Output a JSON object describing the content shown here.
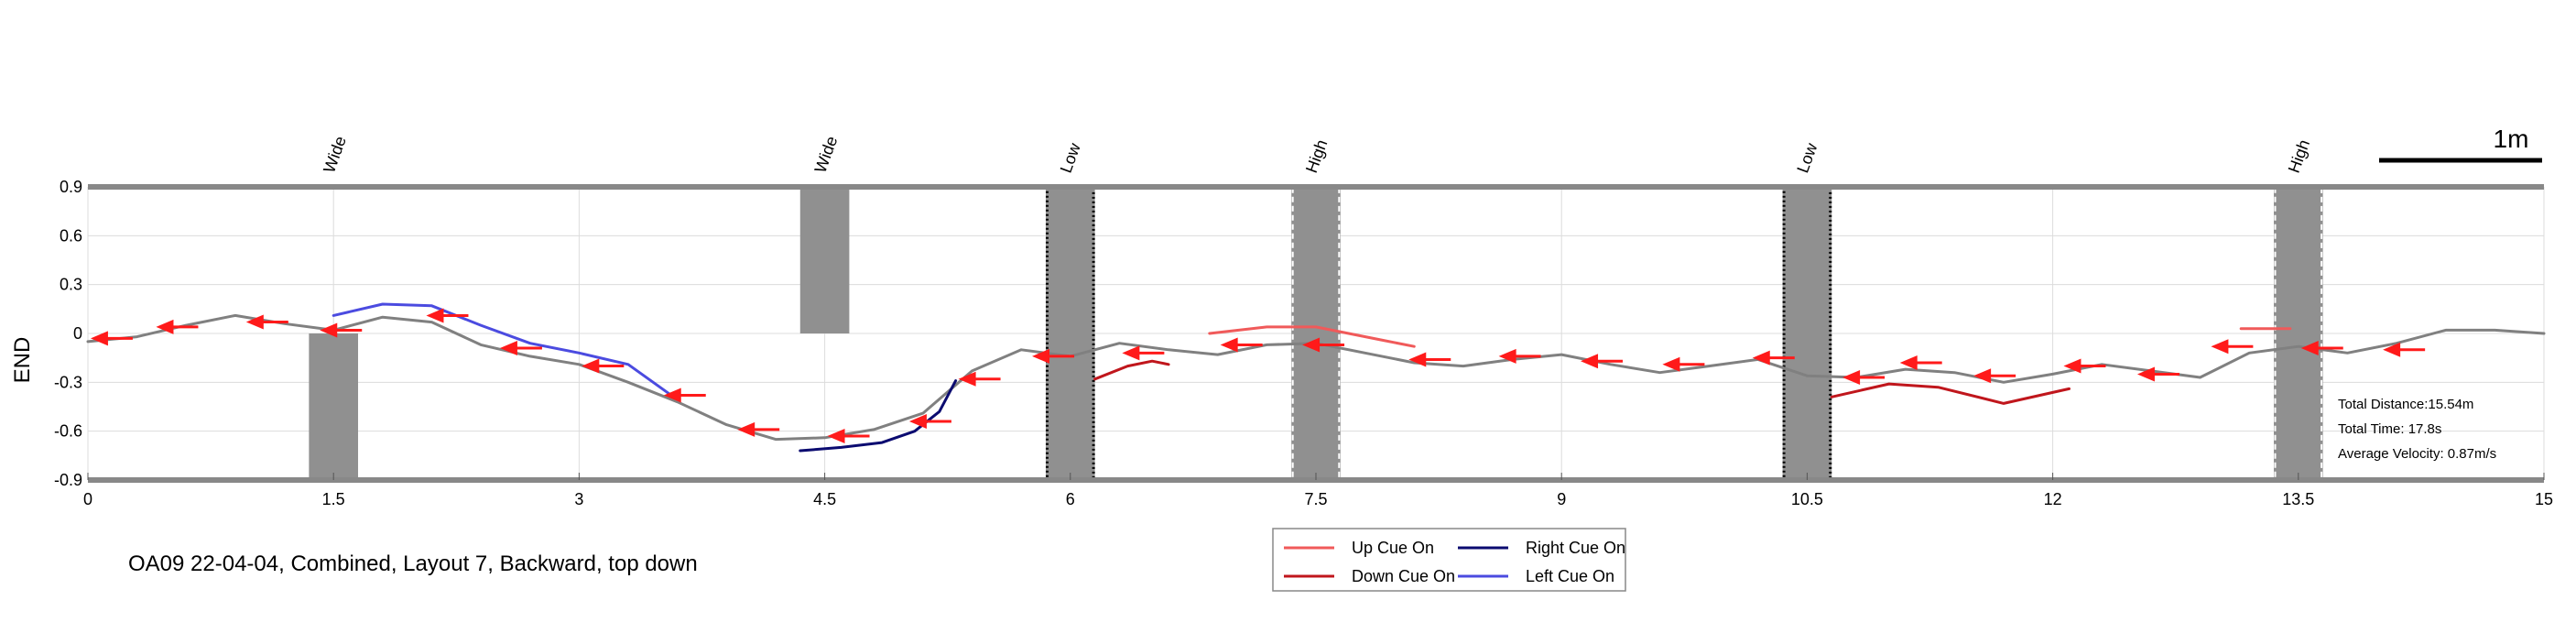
{
  "chart_data": {
    "type": "line",
    "caption": "OA09 22-04-04, Combined, Layout 7, Backward, top down",
    "ylabel": "END",
    "xlim": [
      0,
      15
    ],
    "ylim": [
      -0.9,
      0.9
    ],
    "xticks": [
      0,
      1.5,
      3,
      4.5,
      6,
      7.5,
      9,
      10.5,
      12,
      13.5,
      15
    ],
    "xtick_labels": [
      "0",
      "1.5",
      "3",
      "4.5",
      "6",
      "7.5",
      "9",
      "10.5",
      "12",
      "13.5",
      "15"
    ],
    "yticks": [
      0.9,
      0.6,
      0.3,
      0,
      -0.3,
      -0.6,
      -0.9
    ],
    "ytick_labels": [
      "0.9",
      "0.6",
      "0.3",
      "0",
      "-0.3",
      "-0.6",
      "-0.9"
    ],
    "grid": true,
    "scale_bar_label": "1m",
    "obstacles": [
      {
        "label": "Wide",
        "x0": 1.35,
        "x1": 1.65,
        "y0": -0.9,
        "y1": 0.0,
        "style": "solid"
      },
      {
        "label": "Wide",
        "x0": 4.35,
        "x1": 4.65,
        "y0": 0.0,
        "y1": 0.9,
        "style": "solid"
      },
      {
        "label": "Low",
        "x0": 5.85,
        "x1": 6.15,
        "y0": -0.9,
        "y1": 0.9,
        "style": "dotted-black"
      },
      {
        "label": "High",
        "x0": 7.35,
        "x1": 7.65,
        "y0": -0.9,
        "y1": 0.9,
        "style": "dashed-white"
      },
      {
        "label": "Low",
        "x0": 10.35,
        "x1": 10.65,
        "y0": -0.9,
        "y1": 0.9,
        "style": "dotted-black"
      },
      {
        "label": "High",
        "x0": 13.35,
        "x1": 13.65,
        "y0": -0.9,
        "y1": 0.9,
        "style": "dashed-white"
      }
    ],
    "series": [
      {
        "color": "#808080",
        "x": [
          0,
          0.3,
          0.6,
          0.9,
          1.2,
          1.5,
          1.8,
          2.1,
          2.4,
          2.7,
          3.0,
          3.3,
          3.6,
          3.9,
          4.2,
          4.5,
          4.8,
          5.1,
          5.4,
          5.7,
          6.0,
          6.3,
          6.6,
          6.9,
          7.2,
          7.5,
          7.8,
          8.1,
          8.4,
          8.7,
          9.0,
          9.3,
          9.6,
          9.9,
          10.2,
          10.5,
          10.8,
          11.1,
          11.4,
          11.7,
          12.0,
          12.3,
          12.6,
          12.9,
          13.2,
          13.5,
          13.8,
          14.1,
          14.4,
          14.7,
          15.0
        ],
        "y": [
          -0.05,
          -0.02,
          0.05,
          0.11,
          0.06,
          0.02,
          0.1,
          0.07,
          -0.07,
          -0.14,
          -0.19,
          -0.3,
          -0.42,
          -0.56,
          -0.65,
          -0.64,
          -0.59,
          -0.49,
          -0.23,
          -0.1,
          -0.14,
          -0.06,
          -0.1,
          -0.13,
          -0.07,
          -0.06,
          -0.12,
          -0.18,
          -0.2,
          -0.16,
          -0.13,
          -0.19,
          -0.24,
          -0.2,
          -0.16,
          -0.26,
          -0.27,
          -0.22,
          -0.24,
          -0.3,
          -0.25,
          -0.19,
          -0.23,
          -0.27,
          -0.12,
          -0.08,
          -0.12,
          -0.06,
          0.02,
          0.02,
          0.0
        ]
      },
      {
        "name": "Left Cue On",
        "color": "#4b4be0",
        "x": [
          1.5,
          1.8,
          2.1,
          2.4,
          2.7,
          3.0,
          3.3,
          3.55
        ],
        "y": [
          0.11,
          0.18,
          0.17,
          0.05,
          -0.06,
          -0.12,
          -0.19,
          -0.37
        ]
      },
      {
        "name": "Right Cue On",
        "color": "#0b0b70",
        "x": [
          4.35,
          4.6,
          4.85,
          5.05,
          5.2,
          5.3
        ],
        "y": [
          -0.72,
          -0.7,
          -0.67,
          -0.6,
          -0.48,
          -0.29
        ]
      },
      {
        "name": "Down Cue On",
        "color": "#c0161c",
        "x": [
          6.15,
          6.35,
          6.5,
          6.6
        ],
        "y": [
          -0.28,
          -0.2,
          -0.17,
          -0.19
        ]
      },
      {
        "name": "Up Cue On",
        "color": "#f05a5a",
        "x": [
          6.85,
          7.2,
          7.5,
          7.9,
          8.1
        ],
        "y": [
          0.0,
          0.04,
          0.04,
          -0.04,
          -0.08
        ]
      },
      {
        "name": "Down Cue On",
        "color": "#c0161c",
        "x": [
          10.65,
          11.0,
          11.3,
          11.7,
          12.1
        ],
        "y": [
          -0.39,
          -0.31,
          -0.33,
          -0.43,
          -0.34
        ]
      },
      {
        "name": "Up Cue On",
        "color": "#f05a5a",
        "x": [
          13.15,
          13.45
        ],
        "y": [
          0.03,
          0.03
        ]
      }
    ],
    "arrows": [
      {
        "x": 0.45,
        "y": 0.04
      },
      {
        "x": 1.0,
        "y": 0.07
      },
      {
        "x": 1.45,
        "y": 0.02
      },
      {
        "x": 2.1,
        "y": 0.11
      },
      {
        "x": 2.55,
        "y": -0.09
      },
      {
        "x": 3.05,
        "y": -0.2
      },
      {
        "x": 3.55,
        "y": -0.38
      },
      {
        "x": 4.0,
        "y": -0.59
      },
      {
        "x": 4.55,
        "y": -0.63
      },
      {
        "x": 5.05,
        "y": -0.54
      },
      {
        "x": 5.35,
        "y": -0.28
      },
      {
        "x": 5.8,
        "y": -0.14
      },
      {
        "x": 6.35,
        "y": -0.12
      },
      {
        "x": 6.95,
        "y": -0.07
      },
      {
        "x": 7.45,
        "y": -0.07
      },
      {
        "x": 8.1,
        "y": -0.16
      },
      {
        "x": 8.65,
        "y": -0.14
      },
      {
        "x": 9.15,
        "y": -0.17
      },
      {
        "x": 9.65,
        "y": -0.19
      },
      {
        "x": 10.2,
        "y": -0.15
      },
      {
        "x": 10.75,
        "y": -0.27
      },
      {
        "x": 11.1,
        "y": -0.18
      },
      {
        "x": 11.55,
        "y": -0.26
      },
      {
        "x": 12.1,
        "y": -0.2
      },
      {
        "x": 12.55,
        "y": -0.25
      },
      {
        "x": 13.0,
        "y": -0.08
      },
      {
        "x": 13.55,
        "y": -0.09
      },
      {
        "x": 14.05,
        "y": -0.1
      },
      {
        "x": 0.05,
        "y": -0.03
      }
    ],
    "stats": [
      "Total Distance:15.54m",
      "Total Time: 17.8s",
      "Average Velocity: 0.87m/s"
    ],
    "legend": [
      {
        "label": "Up Cue On",
        "color": "#f05a5a"
      },
      {
        "label": "Right Cue On",
        "color": "#0b0b70"
      },
      {
        "label": "Down Cue On",
        "color": "#c0161c"
      },
      {
        "label": "Left Cue On",
        "color": "#4b4be0"
      }
    ]
  }
}
